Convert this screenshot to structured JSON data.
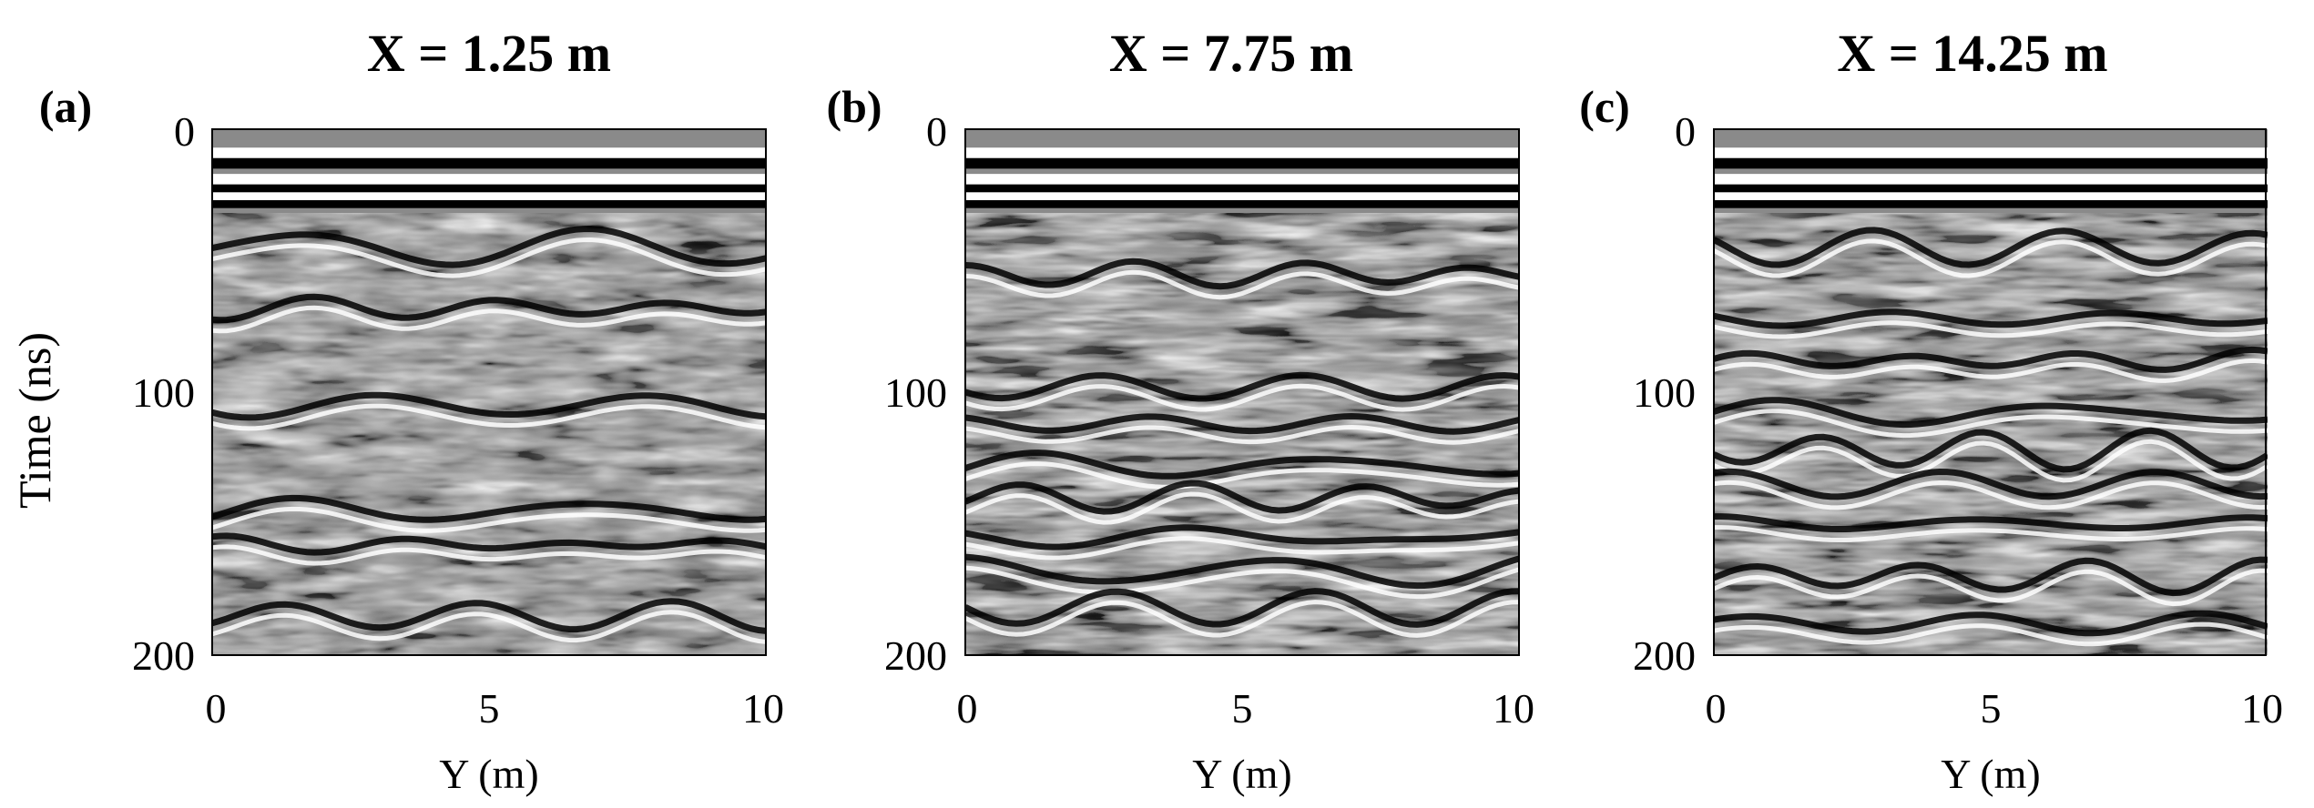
{
  "figure": {
    "ylabel": "Time (ns)",
    "xlabel": "Y (m)"
  },
  "chart_data": [
    {
      "type": "heatmap",
      "panel_label": "(a)",
      "title": "X = 1.25 m",
      "xlabel": "Y (m)",
      "ylabel": "Time (ns)",
      "xlim": [
        0,
        10
      ],
      "ylim": [
        0,
        200
      ],
      "y_reversed": true,
      "x_ticks": [
        0,
        5,
        10
      ],
      "y_ticks": [
        0,
        100,
        200
      ],
      "colormap": "gray",
      "grid": false,
      "features": {
        "direct_wave_bands_ns": [
          12,
          20,
          28
        ],
        "reflector_depths_ns": [
          45,
          68,
          105,
          145,
          158,
          185
        ],
        "texture": "moderate"
      }
    },
    {
      "type": "heatmap",
      "panel_label": "(b)",
      "title": "X = 7.75 m",
      "xlabel": "Y (m)",
      "ylabel": "",
      "xlim": [
        0,
        10
      ],
      "ylim": [
        0,
        200
      ],
      "y_reversed": true,
      "x_ticks": [
        0,
        5,
        10
      ],
      "y_ticks": [
        0,
        100,
        200
      ],
      "colormap": "gray",
      "grid": false,
      "features": {
        "direct_wave_bands_ns": [
          12,
          20,
          28
        ],
        "reflector_depths_ns": [
          55,
          98,
          112,
          128,
          140,
          155,
          168,
          182
        ],
        "texture": "strong"
      }
    },
    {
      "type": "heatmap",
      "panel_label": "(c)",
      "title": "X = 14.25 m",
      "xlabel": "Y (m)",
      "ylabel": "",
      "xlim": [
        0,
        10
      ],
      "ylim": [
        0,
        200
      ],
      "y_reversed": true,
      "x_ticks": [
        0,
        5,
        10
      ],
      "y_ticks": [
        0,
        100,
        200
      ],
      "colormap": "gray",
      "grid": false,
      "features": {
        "direct_wave_bands_ns": [
          12,
          20,
          28
        ],
        "reflector_depths_ns": [
          45,
          72,
          88,
          108,
          122,
          135,
          150,
          170,
          188
        ],
        "texture": "strong"
      }
    }
  ]
}
